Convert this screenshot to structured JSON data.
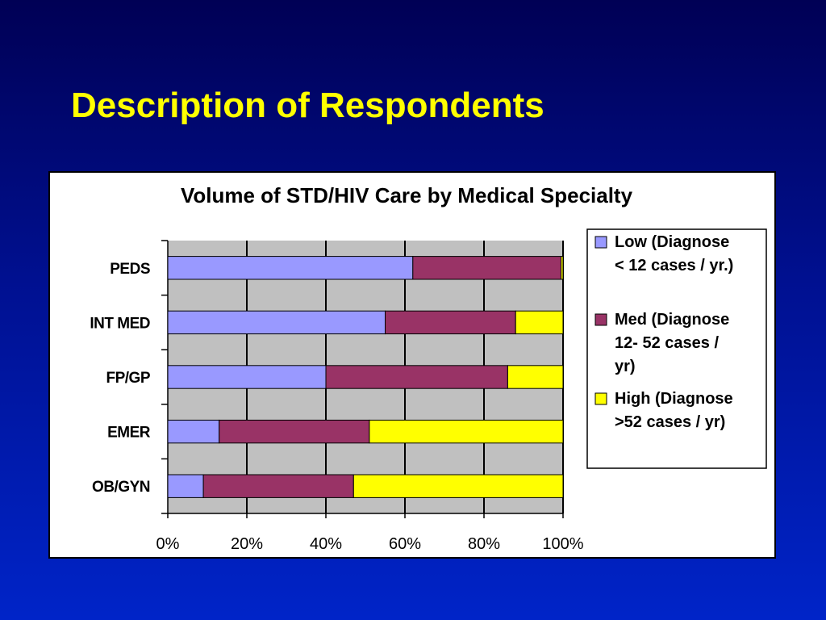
{
  "slide": {
    "title": "Description of Respondents"
  },
  "colors": {
    "background_top": "#000055",
    "background_bottom": "#0024c8",
    "title": "#ffff00",
    "plot_area": "#c0c0c0",
    "low": "#9999ff",
    "med": "#993366",
    "high": "#ffff00"
  },
  "chart_data": {
    "type": "bar",
    "orientation": "horizontal",
    "stacked": "percent",
    "title": "Volume of STD/HIV Care by Medical Specialty",
    "categories": [
      "PEDS",
      "INT MED",
      "FP/GP",
      "EMER",
      "OB/GYN"
    ],
    "series": [
      {
        "name": "Low (Diagnose < 12 cases / yr.)",
        "legend_lines": [
          "Low (Diagnose",
          "< 12 cases / yr.)"
        ],
        "color": "#9999ff",
        "values": [
          62,
          55,
          40,
          13,
          9
        ]
      },
      {
        "name": "Med (Diagnose 12- 52 cases / yr)",
        "legend_lines": [
          "Med (Diagnose",
          "12- 52 cases /",
          "yr)"
        ],
        "color": "#993366",
        "values": [
          37.5,
          33,
          46,
          38,
          38
        ]
      },
      {
        "name": "High (Diagnose >52 cases / yr)",
        "legend_lines": [
          "High (Diagnose",
          ">52 cases / yr)"
        ],
        "color": "#ffff00",
        "values": [
          0.5,
          12,
          14,
          49,
          53
        ]
      }
    ],
    "x_ticks": [
      "0%",
      "20%",
      "40%",
      "60%",
      "80%",
      "100%"
    ],
    "xlim": [
      0,
      100
    ],
    "grid": "vertical",
    "legend_position": "right"
  }
}
